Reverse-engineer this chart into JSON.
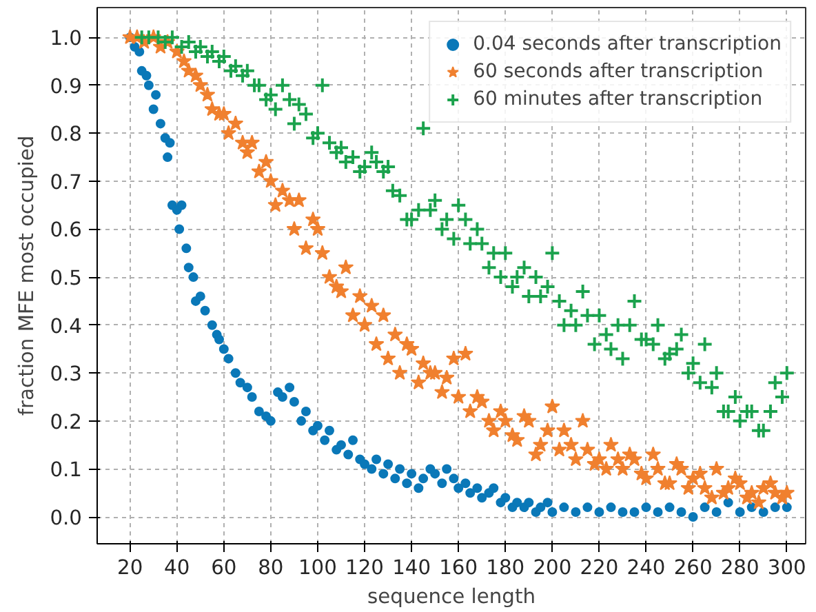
{
  "chart_data": {
    "type": "scatter",
    "xlabel": "sequence length",
    "ylabel": "fraction MFE most occupied",
    "xlim": [
      6,
      308
    ],
    "ylim": [
      -0.056,
      1.062
    ],
    "xticks": [
      20,
      40,
      60,
      80,
      100,
      120,
      140,
      160,
      180,
      200,
      220,
      240,
      260,
      280,
      300
    ],
    "yticks": [
      {
        "value": 0,
        "label": "0.0"
      },
      {
        "value": 0.1,
        "label": "0.1"
      },
      {
        "value": 0.2,
        "label": "0.2"
      },
      {
        "value": 0.3,
        "label": "0.3"
      },
      {
        "value": 0.4,
        "label": "0.4"
      },
      {
        "value": 0.5,
        "label": "0.5"
      },
      {
        "value": 0.6,
        "label": "0.6"
      },
      {
        "value": 0.7,
        "label": "0.7"
      },
      {
        "value": 0.8,
        "label": "0.8"
      },
      {
        "value": 0.9,
        "label": "0.9"
      },
      {
        "value": 1.0,
        "label": "1.0"
      }
    ],
    "grid": true,
    "legend": "top right",
    "series": [
      {
        "name": "0.04 seconds after transcription",
        "color": "#0a78b8",
        "marker": "circle",
        "x": [
          20,
          22,
          24,
          25,
          27,
          28,
          30,
          31,
          33,
          35,
          36,
          37,
          38,
          40,
          41,
          42,
          44,
          45,
          47,
          48,
          50,
          52,
          55,
          57,
          58,
          60,
          62,
          65,
          67,
          70,
          72,
          75,
          78,
          80,
          83,
          85,
          88,
          90,
          93,
          95,
          98,
          100,
          103,
          105,
          108,
          110,
          113,
          115,
          118,
          120,
          123,
          125,
          128,
          130,
          133,
          135,
          138,
          140,
          143,
          145,
          148,
          150,
          153,
          155,
          158,
          160,
          163,
          165,
          168,
          170,
          173,
          175,
          178,
          180,
          183,
          185,
          188,
          190,
          193,
          195,
          198,
          200,
          205,
          210,
          215,
          220,
          225,
          230,
          235,
          240,
          245,
          250,
          255,
          260,
          265,
          270,
          275,
          280,
          285,
          290,
          295,
          300
        ],
        "values": [
          1.0,
          0.98,
          0.97,
          0.93,
          0.92,
          0.9,
          0.85,
          0.88,
          0.82,
          0.79,
          0.75,
          0.78,
          0.65,
          0.64,
          0.6,
          0.65,
          0.56,
          0.52,
          0.5,
          0.45,
          0.46,
          0.43,
          0.4,
          0.38,
          0.37,
          0.35,
          0.33,
          0.3,
          0.28,
          0.27,
          0.25,
          0.22,
          0.21,
          0.2,
          0.26,
          0.25,
          0.27,
          0.24,
          0.2,
          0.22,
          0.18,
          0.19,
          0.16,
          0.18,
          0.14,
          0.15,
          0.13,
          0.16,
          0.12,
          0.11,
          0.1,
          0.12,
          0.09,
          0.11,
          0.08,
          0.1,
          0.07,
          0.09,
          0.06,
          0.08,
          0.1,
          0.09,
          0.07,
          0.1,
          0.08,
          0.06,
          0.07,
          0.05,
          0.06,
          0.04,
          0.05,
          0.06,
          0.03,
          0.04,
          0.02,
          0.03,
          0.02,
          0.03,
          0.01,
          0.02,
          0.03,
          0.01,
          0.02,
          0.01,
          0.02,
          0.01,
          0.02,
          0.01,
          0.01,
          0.02,
          0.01,
          0.02,
          0.01,
          0.0,
          0.02,
          0.01,
          0.03,
          0.01,
          0.02,
          0.01,
          0.02,
          0.02
        ]
      },
      {
        "name": "60 seconds after transcription",
        "color": "#f0802f",
        "marker": "star",
        "x": [
          20,
          23,
          26,
          30,
          33,
          36,
          40,
          43,
          45,
          48,
          50,
          53,
          55,
          58,
          60,
          62,
          65,
          68,
          70,
          72,
          75,
          78,
          80,
          82,
          85,
          88,
          90,
          92,
          95,
          98,
          100,
          102,
          105,
          108,
          110,
          112,
          115,
          118,
          120,
          123,
          125,
          128,
          130,
          133,
          135,
          138,
          140,
          143,
          145,
          148,
          150,
          153,
          155,
          158,
          160,
          163,
          165,
          168,
          170,
          173,
          175,
          178,
          180,
          183,
          185,
          188,
          190,
          193,
          195,
          198,
          200,
          203,
          205,
          208,
          210,
          213,
          215,
          218,
          220,
          223,
          225,
          228,
          230,
          233,
          235,
          238,
          240,
          243,
          245,
          248,
          250,
          253,
          255,
          258,
          260,
          263,
          265,
          268,
          270,
          273,
          275,
          278,
          280,
          283,
          285,
          288,
          290,
          293,
          295,
          298,
          300
        ],
        "values": [
          1.0,
          1.0,
          0.99,
          1.0,
          0.98,
          0.99,
          0.97,
          0.95,
          0.93,
          0.92,
          0.9,
          0.88,
          0.85,
          0.84,
          0.84,
          0.8,
          0.82,
          0.78,
          0.76,
          0.78,
          0.72,
          0.74,
          0.7,
          0.65,
          0.68,
          0.66,
          0.6,
          0.66,
          0.56,
          0.62,
          0.6,
          0.55,
          0.5,
          0.48,
          0.47,
          0.52,
          0.42,
          0.46,
          0.4,
          0.44,
          0.36,
          0.42,
          0.33,
          0.38,
          0.3,
          0.36,
          0.35,
          0.28,
          0.32,
          0.3,
          0.3,
          0.26,
          0.29,
          0.33,
          0.25,
          0.34,
          0.22,
          0.25,
          0.24,
          0.2,
          0.18,
          0.22,
          0.2,
          0.17,
          0.16,
          0.21,
          0.2,
          0.13,
          0.15,
          0.18,
          0.23,
          0.14,
          0.18,
          0.15,
          0.12,
          0.2,
          0.14,
          0.11,
          0.12,
          0.1,
          0.15,
          0.12,
          0.1,
          0.13,
          0.12,
          0.09,
          0.08,
          0.13,
          0.1,
          0.07,
          0.07,
          0.11,
          0.1,
          0.06,
          0.08,
          0.09,
          0.06,
          0.04,
          0.1,
          0.05,
          0.06,
          0.08,
          0.07,
          0.04,
          0.05,
          0.03,
          0.06,
          0.07,
          0.05,
          0.04,
          0.05
        ]
      },
      {
        "name": "60 minutes after transcription",
        "color": "#1ba24d",
        "marker": "cross",
        "x": [
          25,
          28,
          32,
          35,
          38,
          42,
          45,
          48,
          50,
          53,
          55,
          58,
          60,
          63,
          65,
          68,
          70,
          73,
          75,
          78,
          80,
          82,
          85,
          88,
          90,
          92,
          95,
          98,
          100,
          102,
          105,
          108,
          110,
          112,
          115,
          118,
          120,
          123,
          125,
          128,
          130,
          132,
          135,
          138,
          140,
          143,
          145,
          148,
          150,
          153,
          155,
          158,
          160,
          163,
          165,
          168,
          170,
          173,
          175,
          178,
          180,
          183,
          185,
          188,
          190,
          193,
          195,
          198,
          200,
          203,
          205,
          208,
          210,
          213,
          215,
          218,
          220,
          223,
          225,
          228,
          230,
          233,
          235,
          238,
          240,
          243,
          245,
          248,
          250,
          253,
          255,
          258,
          260,
          263,
          265,
          268,
          270,
          273,
          275,
          278,
          280,
          283,
          285,
          288,
          290,
          293,
          295,
          298,
          300
        ],
        "values": [
          1.0,
          1.0,
          1.0,
          0.99,
          1.0,
          0.98,
          0.99,
          0.97,
          0.98,
          0.96,
          0.97,
          0.95,
          0.96,
          0.93,
          0.94,
          0.92,
          0.93,
          0.9,
          0.9,
          0.87,
          0.88,
          0.85,
          0.9,
          0.87,
          0.82,
          0.86,
          0.84,
          0.79,
          0.8,
          0.9,
          0.78,
          0.76,
          0.77,
          0.74,
          0.75,
          0.72,
          0.73,
          0.76,
          0.74,
          0.72,
          0.73,
          0.68,
          0.67,
          0.62,
          0.62,
          0.64,
          0.81,
          0.64,
          0.66,
          0.6,
          0.62,
          0.58,
          0.65,
          0.62,
          0.57,
          0.6,
          0.57,
          0.52,
          0.55,
          0.5,
          0.55,
          0.48,
          0.5,
          0.52,
          0.46,
          0.5,
          0.46,
          0.48,
          0.55,
          0.45,
          0.4,
          0.43,
          0.4,
          0.47,
          0.42,
          0.36,
          0.42,
          0.38,
          0.35,
          0.4,
          0.33,
          0.4,
          0.45,
          0.37,
          0.37,
          0.36,
          0.4,
          0.33,
          0.34,
          0.35,
          0.38,
          0.3,
          0.32,
          0.28,
          0.36,
          0.27,
          0.3,
          0.22,
          0.22,
          0.25,
          0.2,
          0.22,
          0.22,
          0.18,
          0.18,
          0.22,
          0.28,
          0.25,
          0.3
        ]
      }
    ]
  }
}
